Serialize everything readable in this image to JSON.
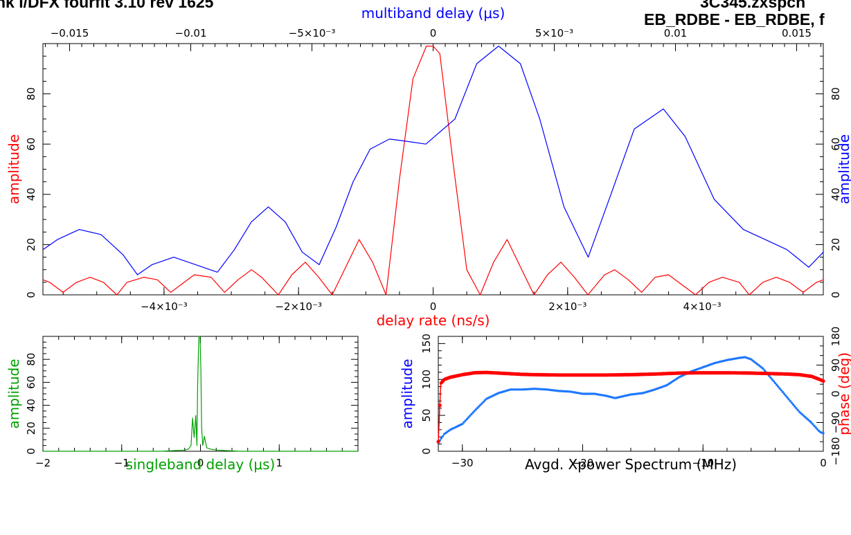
{
  "header": {
    "left": "nk I/DFX fourfit 3.10 rev 1625",
    "right_line1": "3C345.zxspcn",
    "right_line2": "EB_RDBE - EB_RDBE, f"
  },
  "colors": {
    "red": "#ff0000",
    "blue": "#0000ff",
    "green": "#00a000",
    "dots_blue": "#1e78ff",
    "axis": "#000000"
  },
  "chart_data": [
    {
      "name": "top-panel",
      "type": "line",
      "xlabel": "delay rate (ns/s)",
      "x2label": "multiband delay (μs)",
      "ylabel": "amplitude",
      "y2label": "amplitude",
      "xlim": [
        -0.0058,
        0.0058
      ],
      "x2lim": [
        -0.0161,
        0.0161
      ],
      "ylim": [
        0,
        100
      ],
      "x_tick_labels": [
        "−4×10⁻³",
        "−2×10⁻³",
        "0",
        "2×10⁻³",
        "4×10⁻³"
      ],
      "x_ticks": [
        -0.004,
        -0.002,
        0,
        0.002,
        0.004
      ],
      "x2_tick_labels": [
        "−0.015",
        "−0.01",
        "−5×10⁻³",
        "0",
        "5×10⁻³",
        "0.01",
        "0.015"
      ],
      "x2_ticks": [
        -0.015,
        -0.01,
        -0.005,
        0,
        0.005,
        0.01,
        0.015
      ],
      "y_tick_labels": [
        "0",
        "20",
        "40",
        "60",
        "80"
      ],
      "y_ticks": [
        0,
        20,
        40,
        60,
        80
      ],
      "series": [
        {
          "color": "red",
          "axis": "bottom",
          "x": [
            -0.0058,
            -0.0057,
            -0.0055,
            -0.0053,
            -0.0051,
            -0.0049,
            -0.0047,
            -0.00455,
            -0.0043,
            -0.0041,
            -0.0039,
            -0.0037,
            -0.00355,
            -0.0033,
            -0.0031,
            -0.0029,
            -0.0027,
            -0.00255,
            -0.0023,
            -0.0021,
            -0.0019,
            -0.0017,
            -0.0015,
            -0.0013,
            -0.0011,
            -0.0009,
            -0.0007,
            -0.0005,
            -0.0003,
            -0.0001,
            0,
            0.0001,
            0.0003,
            0.0005,
            0.0007,
            0.0009,
            0.0011,
            0.0013,
            0.0015,
            0.0017,
            0.0019,
            0.0021,
            0.0023,
            0.00255,
            0.0027,
            0.0029,
            0.0031,
            0.0033,
            0.0035,
            0.0037,
            0.0039,
            0.0041,
            0.0043,
            0.00455,
            0.0047,
            0.0049,
            0.0051,
            0.0053,
            0.0055,
            0.0057,
            0.0058
          ],
          "y": [
            6,
            5,
            1,
            5,
            7,
            5,
            0,
            5,
            7,
            6,
            1,
            5,
            8,
            7,
            1,
            6,
            10,
            7,
            0,
            8,
            13,
            7,
            0,
            11,
            22,
            13,
            0,
            46,
            86,
            99,
            99,
            96,
            52,
            10,
            0,
            13,
            22,
            11,
            0,
            8,
            13,
            7,
            0,
            8,
            10,
            6,
            1,
            7,
            8,
            4,
            0,
            5,
            7,
            5,
            0,
            5,
            7,
            5,
            1,
            5,
            6
          ]
        },
        {
          "color": "blue",
          "axis": "top",
          "x": [
            -0.0161,
            -0.0155,
            -0.0146,
            -0.0137,
            -0.0128,
            -0.0122,
            -0.0116,
            -0.0107,
            -0.0098,
            -0.0089,
            -0.0082,
            -0.0075,
            -0.0068,
            -0.0061,
            -0.0054,
            -0.0047,
            -0.004,
            -0.0033,
            -0.0026,
            -0.0018,
            -0.001,
            -0.0003,
            0.0009,
            0.0018,
            0.0027,
            0.0036,
            0.0044,
            0.0054,
            0.0064,
            0.0073,
            0.0083,
            0.0095,
            0.0104,
            0.0116,
            0.0128,
            0.0137,
            0.0146,
            0.0155,
            0.0161
          ],
          "y": [
            18,
            22,
            26,
            24,
            16,
            8,
            12,
            15,
            12,
            9,
            18,
            29,
            35,
            29,
            17,
            12,
            27,
            45,
            58,
            62,
            61,
            60,
            70,
            92,
            99,
            92,
            70,
            35,
            15,
            39,
            66,
            74,
            63,
            38,
            26,
            22,
            18,
            11,
            17
          ]
        }
      ]
    },
    {
      "name": "singleband-panel",
      "type": "line",
      "xlabel": "singleband delay (μs)",
      "ylabel": "amplitude",
      "xlim": [
        -2,
        2
      ],
      "ylim": [
        0,
        100
      ],
      "x_tick_labels": [
        "−2",
        "−1",
        "0",
        "1"
      ],
      "x_ticks": [
        -2,
        -1,
        0,
        1
      ],
      "y_tick_labels": [
        "0",
        "20",
        "40",
        "60",
        "80"
      ],
      "y_ticks": [
        0,
        20,
        40,
        60,
        80
      ],
      "series": [
        {
          "color": "green",
          "x": [
            -2,
            -0.5,
            -0.2,
            -0.15,
            -0.12,
            -0.1,
            -0.08,
            -0.06,
            -0.045,
            -0.035,
            -0.02,
            -0.005,
            0.005,
            0.015,
            0.03,
            0.05,
            0.08,
            0.12,
            0.2,
            0.5,
            2
          ],
          "y": [
            0,
            0,
            1,
            2,
            5,
            29,
            12,
            31,
            5,
            60,
            100,
            100,
            72,
            20,
            5,
            13,
            3,
            2,
            1,
            0,
            0
          ]
        }
      ]
    },
    {
      "name": "spectrum-panel",
      "type": "scatter",
      "xlabel": "Avgd. Xpower Spectrum (MHz)",
      "ylabel": "amplitude",
      "y2label": "phase (deg)",
      "xlim": [
        -32,
        0
      ],
      "ylim": [
        0,
        160
      ],
      "y2lim": [
        -180,
        180
      ],
      "x_tick_labels": [
        "−30",
        "−20",
        "−10",
        "0"
      ],
      "x_ticks": [
        -30,
        -20,
        -10,
        0
      ],
      "y_tick_labels": [
        "0",
        "50",
        "100",
        "150"
      ],
      "y_ticks": [
        0,
        50,
        100,
        150
      ],
      "y2_tick_labels": [
        "−180",
        "−90",
        "0",
        "90",
        "180"
      ],
      "y2_ticks": [
        -180,
        -90,
        0,
        90,
        180
      ],
      "series": [
        {
          "color": "dots_blue",
          "axis": "left",
          "x": [
            -32,
            -31.5,
            -31,
            -30,
            -29,
            -28,
            -27,
            -26,
            -25,
            -24,
            -23,
            -22,
            -21,
            -20,
            -19,
            -18,
            -17.3,
            -16,
            -15,
            -14,
            -13,
            -12,
            -11,
            -10,
            -9,
            -8,
            -7,
            -6.5,
            -6,
            -5,
            -4,
            -3,
            -2,
            -1,
            -0.3,
            0
          ],
          "y": [
            12,
            24,
            30,
            38,
            56,
            73,
            81,
            86,
            86,
            87,
            86,
            84,
            83,
            80,
            80,
            77,
            74,
            79,
            81,
            86,
            92,
            103,
            111,
            117,
            123,
            127,
            130,
            131,
            128,
            115,
            95,
            75,
            55,
            40,
            27,
            25
          ]
        },
        {
          "color": "red",
          "axis": "right",
          "x": [
            -32,
            -31.8,
            -31.5,
            -31,
            -30,
            -29,
            -28,
            -27,
            -26,
            -25,
            -24,
            -22,
            -20,
            -18,
            -16,
            -14,
            -12,
            -10,
            -8,
            -6,
            -4,
            -3,
            -2,
            -1,
            -0.5,
            0
          ],
          "y": [
            -150,
            32,
            45,
            52,
            60,
            66,
            67,
            65,
            63,
            61,
            60,
            59,
            59,
            59,
            60,
            62,
            65,
            66,
            66,
            65,
            63,
            62,
            60,
            55,
            48,
            40
          ]
        }
      ]
    }
  ]
}
